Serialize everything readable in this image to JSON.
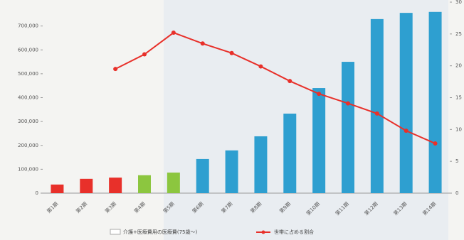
{
  "chart_data": {
    "type": "bar",
    "categories": [
      "第1期",
      "第2期",
      "第3期",
      "第4期",
      "第5期",
      "第6期",
      "第7期",
      "第8期",
      "第9期",
      "第10期",
      "第11期",
      "第12期",
      "第13期",
      "第14期"
    ],
    "series": [
      {
        "name": "介護+医療費用の医療費(75歳〜)",
        "colors": [
          "#e8302a",
          "#e8302a",
          "#e8302a",
          "#8cc63f",
          "#8cc63f",
          "#2e9fd0",
          "#2e9fd0",
          "#2e9fd0",
          "#2e9fd0",
          "#2e9fd0",
          "#2e9fd0",
          "#2e9fd0",
          "#2e9fd0",
          "#2e9fd0"
        ],
        "values": [
          36000,
          60000,
          65000,
          75000,
          86000,
          143000,
          179000,
          238000,
          333000,
          440000,
          550000,
          729000,
          755000,
          759000
        ]
      },
      {
        "name": "世帯に占める割合",
        "color": "#e8302a",
        "axis": "y2",
        "type": "line",
        "values": [
          null,
          null,
          19.5,
          21.8,
          25.2,
          23.5,
          22,
          19.9,
          17.6,
          15.6,
          14.1,
          12.5,
          9.8,
          7.8
        ]
      }
    ],
    "ylim": [
      0,
      800000
    ],
    "yticks": [
      0,
      {
        "value": 100000,
        "label": "100,000"
      },
      {
        "value": 200000,
        "label": "200,000"
      },
      {
        "value": 300000,
        "label": "300,000"
      },
      {
        "value": 400000,
        "label": "400,000"
      },
      {
        "value": 500000,
        "label": "500,000"
      },
      {
        "value": 600000,
        "label": "600,000"
      },
      {
        "value": 700000,
        "label": "700,000"
      }
    ],
    "y2lim": [
      0,
      30
    ],
    "y2ticks": [
      0,
      5,
      10,
      15,
      20,
      25,
      30
    ]
  }
}
